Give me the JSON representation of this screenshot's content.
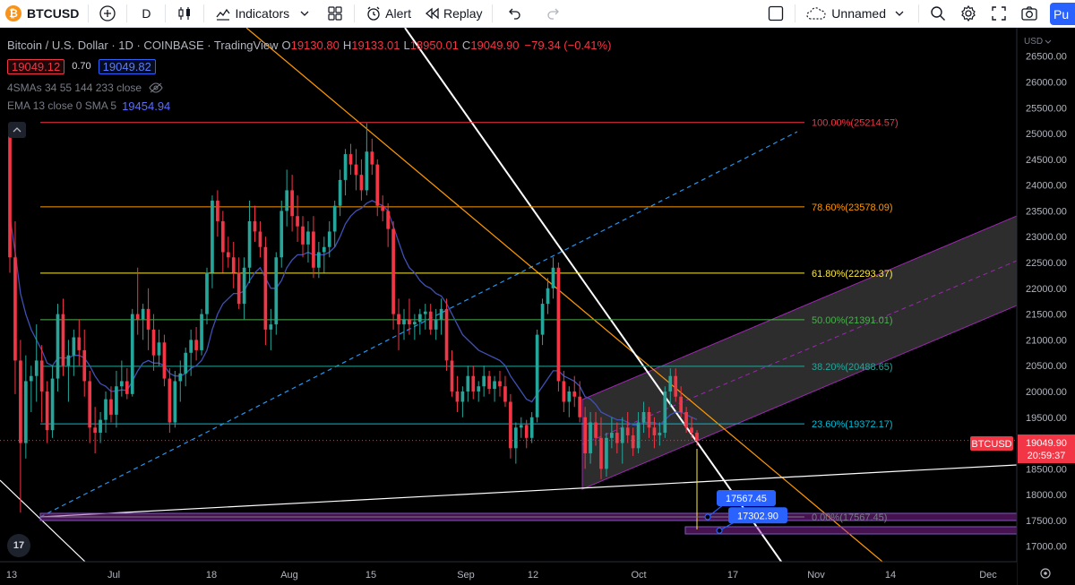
{
  "toolbar": {
    "symbol": "BTCUSD",
    "symbol_logo": "₿",
    "interval": "D",
    "indicators_label": "Indicators",
    "alert_label": "Alert",
    "replay_label": "Replay",
    "layout_name": "Unnamed",
    "publish_label": "Pu",
    "icons": [
      "add-symbol-icon",
      "candles-icon",
      "indicators-icon",
      "chevron-down-icon",
      "templates-icon",
      "alert-icon",
      "replay-icon",
      "undo-icon",
      "redo-icon",
      "checkbox-icon",
      "cloud-icon",
      "search-icon",
      "settings-icon",
      "fullscreen-icon",
      "camera-icon"
    ]
  },
  "legend": {
    "title": "Bitcoin / U.S. Dollar · 1D · COINBASE · TradingView",
    "o_label": "O",
    "o_value": "19130.80",
    "h_label": "H",
    "h_value": "19133.01",
    "l_label": "L",
    "l_value": "18950.01",
    "c_label": "C",
    "c_value": "19049.90",
    "change": "−79.34 (−0.41%)",
    "bid": "19049.12",
    "spread": "0.70",
    "ask": "19049.82",
    "sma_label": "4SMAs 34 55 144 233 close",
    "ema_label": "EMA 13 close 0 SMA 5",
    "ema_value": "19454.94",
    "collapse_icon": "chevron-up-icon",
    "logo_text": "17"
  },
  "chart_data": {
    "type": "candlestick",
    "price_axis": {
      "currency": "USD",
      "ticks": [
        "26500.00",
        "26000.00",
        "25500.00",
        "25000.00",
        "24500.00",
        "24000.00",
        "23500.00",
        "23000.00",
        "22500.00",
        "22000.00",
        "21500.00",
        "21000.00",
        "20500.00",
        "20000.00",
        "19500.00",
        "19000.00",
        "18500.00",
        "18000.00",
        "17500.00",
        "17000.00"
      ],
      "range": [
        16700,
        27050
      ]
    },
    "time_axis": {
      "ticks": [
        "13",
        "Jul",
        "18",
        "Aug",
        "15",
        "Sep",
        "12",
        "Oct",
        "17",
        "Nov",
        "14",
        "Dec"
      ]
    },
    "last_price": {
      "symbol": "BTCUSD",
      "price": "19049.90",
      "countdown": "20:59:37",
      "value": 19049.9,
      "color": "#f23645"
    },
    "fib_levels": [
      {
        "label": "100.00%(25214.57)",
        "price": 25214.57,
        "color": "#f23645"
      },
      {
        "label": "78.60%(23578.09)",
        "price": 23578.09,
        "color": "#ff9800"
      },
      {
        "label": "61.80%(22293.37)",
        "price": 22293.37,
        "color": "#ffeb3b"
      },
      {
        "label": "50.00%(21391.01)",
        "price": 21391.01,
        "color": "#4caf50"
      },
      {
        "label": "38.20%(20488.65)",
        "price": 20488.65,
        "color": "#26a69a"
      },
      {
        "label": "23.60%(19372.17)",
        "price": 19372.17,
        "color": "#00bcd4"
      },
      {
        "label": "0.00%(17567.45)",
        "price": 17567.45,
        "color": "#787b86"
      }
    ],
    "price_labels": [
      {
        "text": "17567.45",
        "price": 17567.45
      },
      {
        "text": "17302.90",
        "price": 17302.9
      }
    ],
    "candles": [
      [
        24950,
        24950,
        22300,
        22600
      ],
      [
        22600,
        23300,
        19950,
        20600
      ],
      [
        20600,
        21000,
        17650,
        19000
      ],
      [
        19000,
        20700,
        18700,
        20200
      ],
      [
        20200,
        20500,
        19600,
        20300
      ],
      [
        20300,
        21300,
        19800,
        20600
      ],
      [
        20600,
        20900,
        19400,
        20000
      ],
      [
        20000,
        20200,
        19000,
        19250
      ],
      [
        19250,
        20500,
        19100,
        20250
      ],
      [
        20250,
        21700,
        20000,
        21500
      ],
      [
        21500,
        21800,
        20300,
        20500
      ],
      [
        20500,
        21000,
        19800,
        20700
      ],
      [
        20700,
        21200,
        20300,
        21050
      ],
      [
        21050,
        21400,
        20500,
        20800
      ],
      [
        20800,
        21200,
        19900,
        20200
      ],
      [
        20200,
        20400,
        19000,
        19300
      ],
      [
        19300,
        19700,
        18800,
        19200
      ],
      [
        19200,
        19600,
        19000,
        19450
      ],
      [
        19450,
        20000,
        19200,
        19850
      ],
      [
        19850,
        20100,
        19400,
        19550
      ],
      [
        19550,
        20400,
        19300,
        20100
      ],
      [
        20100,
        20600,
        19900,
        20200
      ],
      [
        20200,
        20450,
        19850,
        19950
      ],
      [
        19950,
        21600,
        19900,
        21500
      ],
      [
        21500,
        22400,
        21100,
        21400
      ],
      [
        21400,
        21700,
        21000,
        21600
      ],
      [
        21600,
        22000,
        20800,
        21200
      ],
      [
        21200,
        21500,
        20400,
        20700
      ],
      [
        20700,
        21200,
        20500,
        20950
      ],
      [
        20950,
        21100,
        20100,
        20250
      ],
      [
        20250,
        20450,
        19200,
        19400
      ],
      [
        19400,
        20400,
        19300,
        20200
      ],
      [
        20200,
        20600,
        19800,
        20350
      ],
      [
        20350,
        20850,
        20100,
        20750
      ],
      [
        20750,
        21200,
        20300,
        21000
      ],
      [
        21000,
        21250,
        20600,
        20800
      ],
      [
        20800,
        21600,
        20700,
        21500
      ],
      [
        21500,
        22400,
        21300,
        22300
      ],
      [
        22300,
        23800,
        22000,
        23700
      ],
      [
        23700,
        23900,
        23000,
        23300
      ],
      [
        23300,
        23500,
        22300,
        22700
      ],
      [
        22700,
        23000,
        22400,
        22600
      ],
      [
        22600,
        22900,
        22000,
        22300
      ],
      [
        22300,
        22600,
        21600,
        21700
      ],
      [
        21700,
        22600,
        21400,
        22400
      ],
      [
        22400,
        23700,
        22100,
        23300
      ],
      [
        23300,
        23600,
        22900,
        23100
      ],
      [
        23100,
        23300,
        22600,
        22800
      ],
      [
        22800,
        23000,
        20900,
        21200
      ],
      [
        21200,
        21600,
        20800,
        21300
      ],
      [
        21300,
        22700,
        21100,
        22600
      ],
      [
        22600,
        23700,
        22400,
        23500
      ],
      [
        23500,
        24300,
        23200,
        23900
      ],
      [
        23900,
        24200,
        23100,
        23400
      ],
      [
        23400,
        23800,
        22900,
        23200
      ],
      [
        23200,
        23400,
        22600,
        22850
      ],
      [
        22850,
        23300,
        22500,
        23100
      ],
      [
        23100,
        23400,
        22200,
        22400
      ],
      [
        22400,
        22900,
        22200,
        22700
      ],
      [
        22700,
        23000,
        22300,
        22800
      ],
      [
        22800,
        23300,
        22600,
        23100
      ],
      [
        23100,
        23700,
        22800,
        23600
      ],
      [
        23600,
        24300,
        23400,
        24100
      ],
      [
        24100,
        24700,
        23800,
        24600
      ],
      [
        24600,
        24800,
        24200,
        24400
      ],
      [
        24400,
        24700,
        23900,
        24200
      ],
      [
        24200,
        24500,
        23700,
        23900
      ],
      [
        23900,
        25200,
        23800,
        24650
      ],
      [
        24650,
        24900,
        24200,
        24400
      ],
      [
        24400,
        24500,
        23400,
        23600
      ],
      [
        23600,
        23800,
        23300,
        23500
      ],
      [
        23500,
        23650,
        22800,
        23150
      ],
      [
        23150,
        23300,
        21200,
        21500
      ],
      [
        21500,
        21800,
        20800,
        21300
      ],
      [
        21300,
        21600,
        21000,
        21400
      ],
      [
        21400,
        21800,
        21100,
        21300
      ],
      [
        21300,
        21500,
        21000,
        21350
      ],
      [
        21350,
        21600,
        21100,
        21500
      ],
      [
        21500,
        21700,
        21200,
        21550
      ],
      [
        21550,
        21700,
        21100,
        21200
      ],
      [
        21200,
        21600,
        21000,
        21400
      ],
      [
        21400,
        21800,
        21100,
        21600
      ],
      [
        21600,
        21800,
        20400,
        20600
      ],
      [
        20600,
        20800,
        19900,
        20000
      ],
      [
        20000,
        20300,
        19600,
        19800
      ],
      [
        19800,
        20100,
        19500,
        20000
      ],
      [
        20000,
        20500,
        19800,
        20300
      ],
      [
        20300,
        20500,
        19850,
        20000
      ],
      [
        20000,
        20200,
        19800,
        20100
      ],
      [
        20100,
        20500,
        19900,
        20300
      ],
      [
        20300,
        20400,
        19950,
        20050
      ],
      [
        20050,
        20300,
        19800,
        20200
      ],
      [
        20200,
        20400,
        19900,
        20100
      ],
      [
        20100,
        20300,
        19700,
        19800
      ],
      [
        19800,
        19950,
        18700,
        18900
      ],
      [
        18900,
        19400,
        18600,
        19300
      ],
      [
        19300,
        19500,
        19100,
        19350
      ],
      [
        19350,
        19450,
        18900,
        19100
      ],
      [
        19100,
        19600,
        19000,
        19500
      ],
      [
        19500,
        21200,
        19400,
        21100
      ],
      [
        21100,
        21800,
        20900,
        21700
      ],
      [
        21700,
        22200,
        21500,
        22000
      ],
      [
        22000,
        22600,
        21800,
        22400
      ],
      [
        22400,
        22500,
        20000,
        20200
      ],
      [
        20200,
        20400,
        19600,
        19800
      ],
      [
        19800,
        20100,
        19500,
        20000
      ],
      [
        20000,
        20300,
        19700,
        19900
      ],
      [
        19900,
        20200,
        19400,
        19500
      ],
      [
        19500,
        19700,
        18500,
        18800
      ],
      [
        18800,
        19600,
        18600,
        19400
      ],
      [
        19400,
        19600,
        18950,
        19100
      ],
      [
        19100,
        19500,
        18300,
        18500
      ],
      [
        18500,
        19200,
        18350,
        19100
      ],
      [
        19100,
        19500,
        18900,
        19200
      ],
      [
        19200,
        19400,
        18800,
        19000
      ],
      [
        19000,
        19500,
        18600,
        19300
      ],
      [
        19300,
        19600,
        19000,
        19150
      ],
      [
        19150,
        19300,
        18750,
        18900
      ],
      [
        18900,
        19600,
        18800,
        19400
      ],
      [
        19400,
        19800,
        19200,
        19600
      ],
      [
        19600,
        19700,
        19100,
        19300
      ],
      [
        19300,
        19500,
        18900,
        19150
      ],
      [
        19150,
        19400,
        18950,
        19200
      ],
      [
        19200,
        20100,
        19100,
        20000
      ],
      [
        20000,
        20450,
        19700,
        20300
      ],
      [
        20300,
        20450,
        19800,
        19900
      ],
      [
        19900,
        20100,
        19500,
        19600
      ],
      [
        19600,
        19700,
        19200,
        19300
      ],
      [
        19300,
        19500,
        19100,
        19200
      ],
      [
        19200,
        19250,
        18950,
        19050
      ]
    ],
    "ema": [
      23400,
      22700,
      21900,
      21500,
      21200,
      21000,
      20800,
      20550,
      20500,
      20650,
      20650,
      20650,
      20700,
      20700,
      20650,
      20500,
      20300,
      20150,
      20100,
      20000,
      20010,
      20030,
      20020,
      20200,
      20400,
      20550,
      20600,
      20550,
      20550,
      20500,
      20350,
      20300,
      20300,
      20350,
      20450,
      20500,
      20600,
      20800,
      21200,
      21500,
      21700,
      21800,
      21900,
      21900,
      21950,
      22150,
      22300,
      22400,
      22200,
      22000,
      22000,
      22150,
      22400,
      22550,
      22650,
      22650,
      22700,
      22650,
      22650,
      22650,
      22700,
      22800,
      23000,
      23250,
      23400,
      23500,
      23550,
      23650,
      23700,
      23650,
      23600,
      23500,
      23200,
      22900,
      22600,
      22400,
      22300,
      22150,
      22050,
      22000,
      21900,
      21850,
      21700,
      21500,
      21300,
      21100,
      21000,
      20900,
      20800,
      20750,
      20700,
      20650,
      20600,
      20500,
      20300,
      20150,
      20000,
      19850,
      19800,
      19950,
      20100,
      20250,
      20400,
      20400,
      20300,
      20250,
      20200,
      20100,
      19900,
      19850,
      19750,
      19600,
      19550,
      19500,
      19450,
      19450,
      19400,
      19350,
      19350,
      19400,
      19400,
      19400,
      19350,
      19450,
      19550,
      19600,
      19600,
      19550,
      19500,
      19454
    ]
  }
}
